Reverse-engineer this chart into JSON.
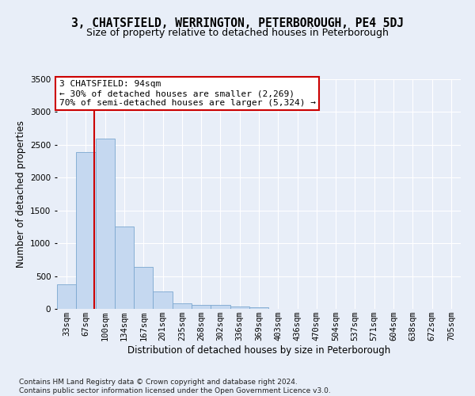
{
  "title": "3, CHATSFIELD, WERRINGTON, PETERBOROUGH, PE4 5DJ",
  "subtitle": "Size of property relative to detached houses in Peterborough",
  "xlabel": "Distribution of detached houses by size in Peterborough",
  "ylabel": "Number of detached properties",
  "footnote": "Contains HM Land Registry data © Crown copyright and database right 2024.\nContains public sector information licensed under the Open Government Licence v3.0.",
  "bar_labels": [
    "33sqm",
    "67sqm",
    "100sqm",
    "134sqm",
    "167sqm",
    "201sqm",
    "235sqm",
    "268sqm",
    "302sqm",
    "336sqm",
    "369sqm",
    "403sqm",
    "436sqm",
    "470sqm",
    "504sqm",
    "537sqm",
    "571sqm",
    "604sqm",
    "638sqm",
    "672sqm",
    "705sqm"
  ],
  "bar_values": [
    380,
    2390,
    2600,
    1250,
    640,
    260,
    90,
    60,
    60,
    40,
    30,
    0,
    0,
    0,
    0,
    0,
    0,
    0,
    0,
    0,
    0
  ],
  "bar_color": "#c5d8f0",
  "bar_edge_color": "#7ba7d0",
  "vline_x_index": 1.42,
  "vline_color": "#cc0000",
  "annotation_text": "3 CHATSFIELD: 94sqm\n← 30% of detached houses are smaller (2,269)\n70% of semi-detached houses are larger (5,324) →",
  "annotation_box_color": "#cc0000",
  "ylim": [
    0,
    3500
  ],
  "background_color": "#e8eef8",
  "grid_color": "#ffffff",
  "title_fontsize": 10.5,
  "subtitle_fontsize": 9,
  "axis_fontsize": 8.5,
  "tick_fontsize": 7.5,
  "annotation_fontsize": 8
}
